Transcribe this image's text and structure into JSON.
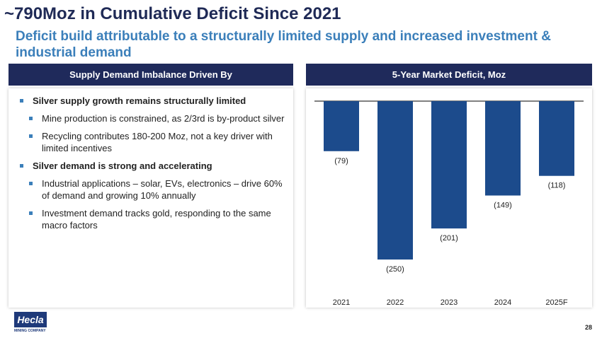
{
  "title": "~790Moz in Cumulative Deficit Since 2021",
  "subtitle": "Deficit build attributable to a structurally limited supply and increased investment & industrial demand",
  "left_panel": {
    "header": "Supply Demand Imbalance Driven By",
    "bullets": [
      {
        "text": "Silver supply growth remains structurally limited",
        "level": 1
      },
      {
        "text": "Mine production is constrained, as 2/3rd is by-product silver",
        "level": 2
      },
      {
        "text": "Recycling contributes 180-200 Moz, not a key driver with limited incentives",
        "level": 2
      },
      {
        "text": "Silver demand is strong and accelerating",
        "level": 1
      },
      {
        "text": "Industrial applications – solar, EVs, electronics – drive 60% of demand and growing 10% annually",
        "level": 2
      },
      {
        "text": "Investment demand tracks gold, responding to the same macro factors",
        "level": 2
      }
    ]
  },
  "right_panel": {
    "header": "5-Year Market Deficit, Moz"
  },
  "chart_data": {
    "type": "bar",
    "categories": [
      "2021",
      "2022",
      "2023",
      "2024",
      "2025F"
    ],
    "values": [
      -79,
      -250,
      -201,
      -149,
      -118
    ],
    "labels": [
      "(79)",
      "(250)",
      "(201)",
      "(149)",
      "(118)"
    ],
    "bar_color": "#1c4b8c",
    "title": "",
    "xlabel": "",
    "ylabel": "",
    "ylim": [
      -250,
      0
    ],
    "grid": false
  },
  "footer": {
    "logo_text": "Hecla",
    "logo_subtext": "MINING COMPANY",
    "page_number": "28"
  }
}
